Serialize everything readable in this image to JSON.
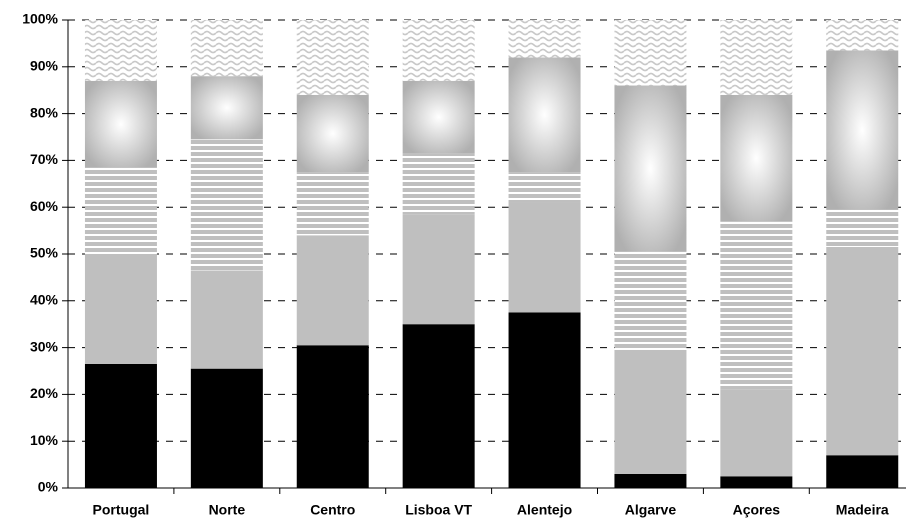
{
  "chart_data": {
    "type": "stacked_bar",
    "categories": [
      "Portugal",
      "Norte",
      "Centro",
      "Lisboa VT",
      "Alentejo",
      "Algarve",
      "Açores",
      "Madeira"
    ],
    "series": [
      {
        "color": "#000000",
        "pattern": "solid",
        "values": [
          26.5,
          25.5,
          30.5,
          35,
          37.5,
          3,
          2.5,
          7
        ]
      },
      {
        "color": "#bfbfbf",
        "pattern": "solid",
        "values": [
          23.5,
          21,
          23.5,
          23.5,
          23.5,
          26.5,
          18.5,
          44.5
        ]
      },
      {
        "color": "#bfbfbf",
        "pattern": "stripes",
        "values": [
          18.5,
          28,
          13.5,
          13,
          6.5,
          21,
          36,
          8
        ]
      },
      {
        "color": "#b0b0b0",
        "pattern": "gradient",
        "values": [
          18.5,
          13.5,
          16.5,
          15.5,
          24.5,
          35.5,
          27,
          34
        ]
      },
      {
        "color": "#c8c8c8",
        "pattern": "waves",
        "values": [
          13,
          12,
          16,
          13,
          8,
          14,
          16,
          6.5
        ]
      }
    ],
    "ylim": [
      0,
      100
    ],
    "yticks": [
      {
        "value": 0,
        "label": "0%"
      },
      {
        "value": 10,
        "label": "10%"
      },
      {
        "value": 20,
        "label": "20%"
      },
      {
        "value": 30,
        "label": "30%"
      },
      {
        "value": 40,
        "label": "40%"
      },
      {
        "value": 50,
        "label": "50%"
      },
      {
        "value": 60,
        "label": "60%"
      },
      {
        "value": 70,
        "label": "70%"
      },
      {
        "value": 80,
        "label": "80%"
      },
      {
        "value": 90,
        "label": "90%"
      },
      {
        "value": 100,
        "label": "100%"
      }
    ],
    "grid": true
  }
}
